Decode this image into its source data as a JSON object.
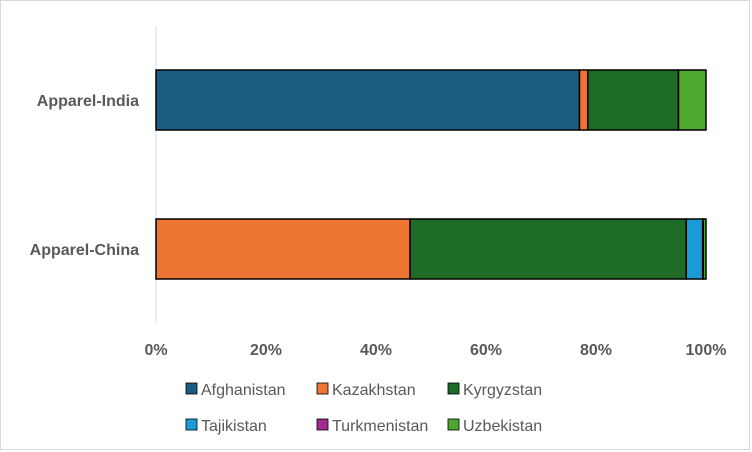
{
  "chart_data": {
    "type": "bar",
    "orientation": "horizontal",
    "stacked": "percent",
    "categories": [
      "Apparel-India",
      "Apparel-China"
    ],
    "series": [
      {
        "name": "Afghanistan",
        "color": "#1a5e84",
        "values": [
          77.0,
          0.0
        ]
      },
      {
        "name": "Kazakhstan",
        "color": "#ed7433",
        "values": [
          1.5,
          46.2
        ]
      },
      {
        "name": "Kyrgyzstan",
        "color": "#1e6b26",
        "values": [
          16.5,
          50.2
        ]
      },
      {
        "name": "Tajikistan",
        "color": "#1a9bd7",
        "values": [
          0.0,
          3.0
        ]
      },
      {
        "name": "Turkmenistan",
        "color": "#a02b93",
        "values": [
          0.0,
          0.1
        ]
      },
      {
        "name": "Uzbekistan",
        "color": "#4ea72e",
        "values": [
          5.0,
          0.5
        ]
      }
    ],
    "x_ticks": [
      "0%",
      "20%",
      "40%",
      "60%",
      "80%",
      "100%"
    ],
    "xlim": [
      0,
      100
    ],
    "grid": false,
    "legend_position": "bottom"
  }
}
